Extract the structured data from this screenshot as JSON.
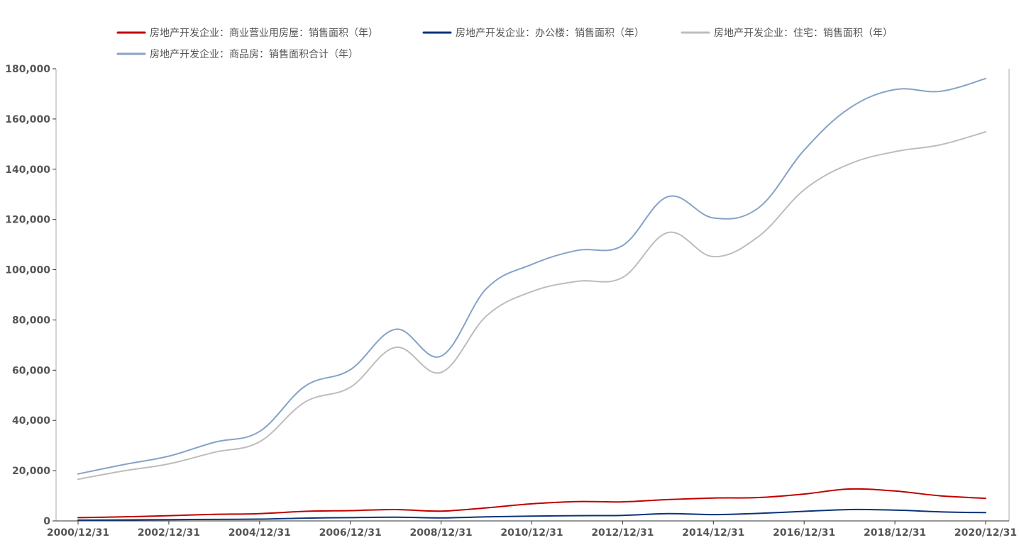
{
  "chart_data": {
    "type": "line",
    "title": "",
    "xlabel": "",
    "ylabel": "",
    "x": [
      "2000/12/31",
      "2001/12/31",
      "2002/12/31",
      "2003/12/31",
      "2004/12/31",
      "2005/12/31",
      "2006/12/31",
      "2007/12/31",
      "2008/12/31",
      "2009/12/31",
      "2010/12/31",
      "2011/12/31",
      "2012/12/31",
      "2013/12/31",
      "2014/12/31",
      "2015/12/31",
      "2016/12/31",
      "2017/12/31",
      "2018/12/31",
      "2019/12/31",
      "2020/12/31"
    ],
    "xticks": [
      "2000/12/31",
      "2002/12/31",
      "2004/12/31",
      "2006/12/31",
      "2008/12/31",
      "2010/12/31",
      "2012/12/31",
      "2014/12/31",
      "2016/12/31",
      "2018/12/31",
      "2020/12/31"
    ],
    "ylim": [
      0,
      180000
    ],
    "yticks": [
      "0",
      "20,000",
      "40,000",
      "60,000",
      "80,000",
      "100,000",
      "120,000",
      "140,000",
      "160,000",
      "180,000"
    ],
    "yticks_values": [
      0,
      20000,
      40000,
      60000,
      80000,
      100000,
      120000,
      140000,
      160000,
      180000
    ],
    "legend_position": "top",
    "grid": false,
    "series": [
      {
        "name": "房地产开发企业：商业营业用房屋：销售面积（年）",
        "color": "#c00000",
        "values": [
          1300,
          1600,
          2100,
          2600,
          2900,
          3800,
          4100,
          4500,
          3900,
          5200,
          6800,
          7700,
          7600,
          8500,
          9100,
          9300,
          10700,
          12700,
          11900,
          10000,
          9000
        ]
      },
      {
        "name": "房地产开发企业：办公楼：销售面积（年）",
        "color": "#0b3478",
        "values": [
          300,
          400,
          500,
          600,
          700,
          1100,
          1300,
          1500,
          1200,
          1600,
          1900,
          2100,
          2200,
          2900,
          2500,
          3000,
          3800,
          4500,
          4300,
          3600,
          3300
        ]
      },
      {
        "name": "房地产开发企业：住宅：销售面积（年）",
        "color": "#bdbdbd",
        "values": [
          16600,
          19900,
          22700,
          27300,
          31500,
          47300,
          53200,
          69100,
          59100,
          81600,
          91300,
          95400,
          96900,
          114800,
          105200,
          113300,
          131800,
          142100,
          147000,
          149700,
          154900
        ]
      },
      {
        "name": "房地产开发企业：商品房：销售面积合计（年）",
        "color": "#87a2c8",
        "values": [
          18700,
          22400,
          25800,
          31300,
          35600,
          53600,
          60200,
          76300,
          65600,
          92500,
          102100,
          107700,
          109600,
          129100,
          120600,
          124700,
          147600,
          164300,
          171700,
          171000,
          176100
        ]
      }
    ]
  }
}
